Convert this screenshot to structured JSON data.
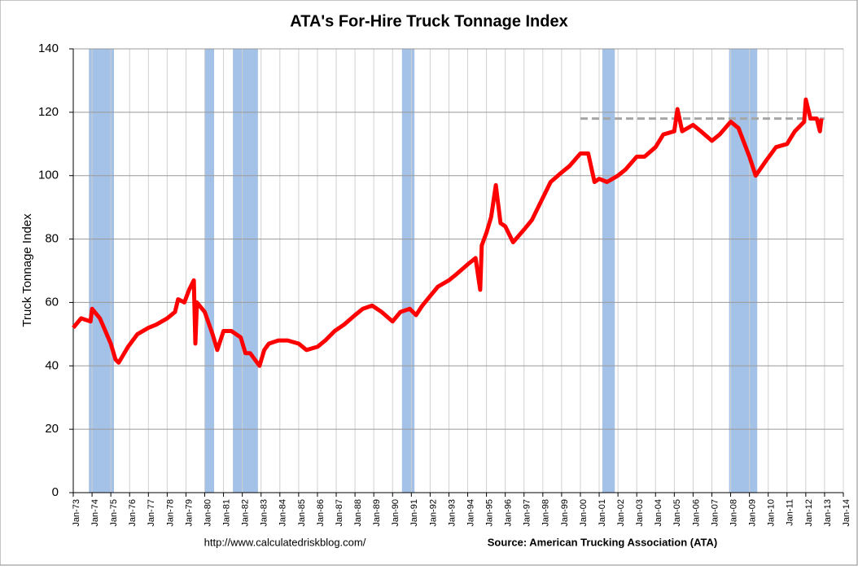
{
  "chart_data": {
    "type": "line",
    "title": "ATA's For-Hire Truck Tonnage Index",
    "y_label": "Truck Tonnage Index",
    "footer_left": "http://www.calculatedriskblog.com/",
    "footer_right": "Source: American Trucking Association (ATA)",
    "xlim": [
      "1973-01",
      "2014-01"
    ],
    "xticks": [
      {
        "value": "1973-01",
        "label": "Jan-73"
      },
      {
        "value": "1974-01",
        "label": "Jan-74"
      },
      {
        "value": "1975-01",
        "label": "Jan-75"
      },
      {
        "value": "1976-01",
        "label": "Jan-76"
      },
      {
        "value": "1977-01",
        "label": "Jan-77"
      },
      {
        "value": "1978-01",
        "label": "Jan-78"
      },
      {
        "value": "1979-01",
        "label": "Jan-79"
      },
      {
        "value": "1980-01",
        "label": "Jan-80"
      },
      {
        "value": "1981-01",
        "label": "Jan-81"
      },
      {
        "value": "1982-01",
        "label": "Jan-82"
      },
      {
        "value": "1983-01",
        "label": "Jan-83"
      },
      {
        "value": "1984-01",
        "label": "Jan-84"
      },
      {
        "value": "1985-01",
        "label": "Jan-85"
      },
      {
        "value": "1986-01",
        "label": "Jan-86"
      },
      {
        "value": "1987-01",
        "label": "Jan-87"
      },
      {
        "value": "1988-01",
        "label": "Jan-88"
      },
      {
        "value": "1989-01",
        "label": "Jan-89"
      },
      {
        "value": "1990-01",
        "label": "Jan-90"
      },
      {
        "value": "1991-01",
        "label": "Jan-91"
      },
      {
        "value": "1992-01",
        "label": "Jan-92"
      },
      {
        "value": "1993-01",
        "label": "Jan-93"
      },
      {
        "value": "1994-01",
        "label": "Jan-94"
      },
      {
        "value": "1995-01",
        "label": "Jan-95"
      },
      {
        "value": "1996-01",
        "label": "Jan-96"
      },
      {
        "value": "1997-01",
        "label": "Jan-97"
      },
      {
        "value": "1998-01",
        "label": "Jan-98"
      },
      {
        "value": "1999-01",
        "label": "Jan-99"
      },
      {
        "value": "2000-01",
        "label": "Jan-00"
      },
      {
        "value": "2001-01",
        "label": "Jan-01"
      },
      {
        "value": "2002-01",
        "label": "Jan-02"
      },
      {
        "value": "2003-01",
        "label": "Jan-03"
      },
      {
        "value": "2004-01",
        "label": "Jan-04"
      },
      {
        "value": "2005-01",
        "label": "Jan-05"
      },
      {
        "value": "2006-01",
        "label": "Jan-06"
      },
      {
        "value": "2007-01",
        "label": "Jan-07"
      },
      {
        "value": "2008-01",
        "label": "Jan-08"
      },
      {
        "value": "2009-01",
        "label": "Jan-09"
      },
      {
        "value": "2010-01",
        "label": "Jan-10"
      },
      {
        "value": "2011-01",
        "label": "Jan-11"
      },
      {
        "value": "2012-01",
        "label": "Jan-12"
      },
      {
        "value": "2013-01",
        "label": "Jan-13"
      },
      {
        "value": "2014-01",
        "label": "Jan-14"
      }
    ],
    "ylim": [
      0,
      140
    ],
    "yticks": [
      0,
      20,
      40,
      60,
      80,
      100,
      120,
      140
    ],
    "grid": true,
    "recession_color": "#a4c2e8",
    "recessions": [
      [
        "1973-11",
        "1975-03"
      ],
      [
        "1980-01",
        "1980-07"
      ],
      [
        "1981-07",
        "1982-11"
      ],
      [
        "1990-07",
        "1991-03"
      ],
      [
        "2001-03",
        "2001-11"
      ],
      [
        "2007-12",
        "2009-06"
      ]
    ],
    "reference_line": {
      "value": 118,
      "x": [
        "2000-01",
        "2013-01"
      ],
      "color": "#a6a6a6"
    },
    "series": [
      {
        "color": "#ff0000",
        "x": [
          "1973-01",
          "1973-06",
          "1973-12",
          "1974-01",
          "1974-06",
          "1975-01",
          "1975-04",
          "1975-06",
          "1975-12",
          "1976-06",
          "1977-01",
          "1977-06",
          "1978-01",
          "1978-06",
          "1978-08",
          "1978-12",
          "1979-03",
          "1979-06",
          "1979-07",
          "1979-08",
          "1980-01",
          "1980-06",
          "1980-09",
          "1981-01",
          "1981-06",
          "1981-12",
          "1982-03",
          "1982-06",
          "1982-12",
          "1983-03",
          "1983-06",
          "1983-12",
          "1984-06",
          "1985-01",
          "1985-06",
          "1986-01",
          "1986-06",
          "1986-12",
          "1987-06",
          "1988-01",
          "1988-06",
          "1988-12",
          "1989-06",
          "1990-01",
          "1990-06",
          "1990-12",
          "1991-04",
          "1991-08",
          "1992-01",
          "1992-06",
          "1993-01",
          "1993-06",
          "1994-01",
          "1994-06",
          "1994-09",
          "1994-10",
          "1995-01",
          "1995-04",
          "1995-07",
          "1995-10",
          "1996-01",
          "1996-06",
          "1997-01",
          "1997-06",
          "1998-01",
          "1998-06",
          "1999-01",
          "1999-06",
          "2000-01",
          "2000-06",
          "2000-10",
          "2001-01",
          "2001-06",
          "2002-01",
          "2002-06",
          "2003-01",
          "2003-06",
          "2004-01",
          "2004-06",
          "2005-01",
          "2005-03",
          "2005-06",
          "2006-01",
          "2006-06",
          "2007-01",
          "2007-06",
          "2008-01",
          "2008-06",
          "2009-01",
          "2009-05",
          "2009-12",
          "2010-06",
          "2011-01",
          "2011-06",
          "2011-12",
          "2012-01",
          "2012-04",
          "2012-08",
          "2012-10",
          "2012-11"
        ],
        "values": [
          52,
          55,
          54,
          58,
          55,
          47,
          42,
          41,
          46,
          50,
          52,
          53,
          55,
          57,
          61,
          60,
          64,
          67,
          47,
          60,
          57,
          50,
          45,
          51,
          51,
          49,
          44,
          44,
          40,
          45,
          47,
          48,
          48,
          47,
          45,
          46,
          48,
          51,
          53,
          56,
          58,
          59,
          57,
          54,
          57,
          58,
          56,
          59,
          62,
          65,
          67,
          69,
          72,
          74,
          64,
          78,
          82,
          87,
          97,
          85,
          84,
          79,
          83,
          86,
          93,
          98,
          101,
          103,
          107,
          107,
          98,
          99,
          98,
          100,
          102,
          106,
          106,
          109,
          113,
          114,
          121,
          114,
          116,
          114,
          111,
          113,
          117,
          115,
          106,
          100,
          105,
          109,
          110,
          114,
          117,
          124,
          118,
          118,
          114,
          118
        ]
      }
    ]
  }
}
